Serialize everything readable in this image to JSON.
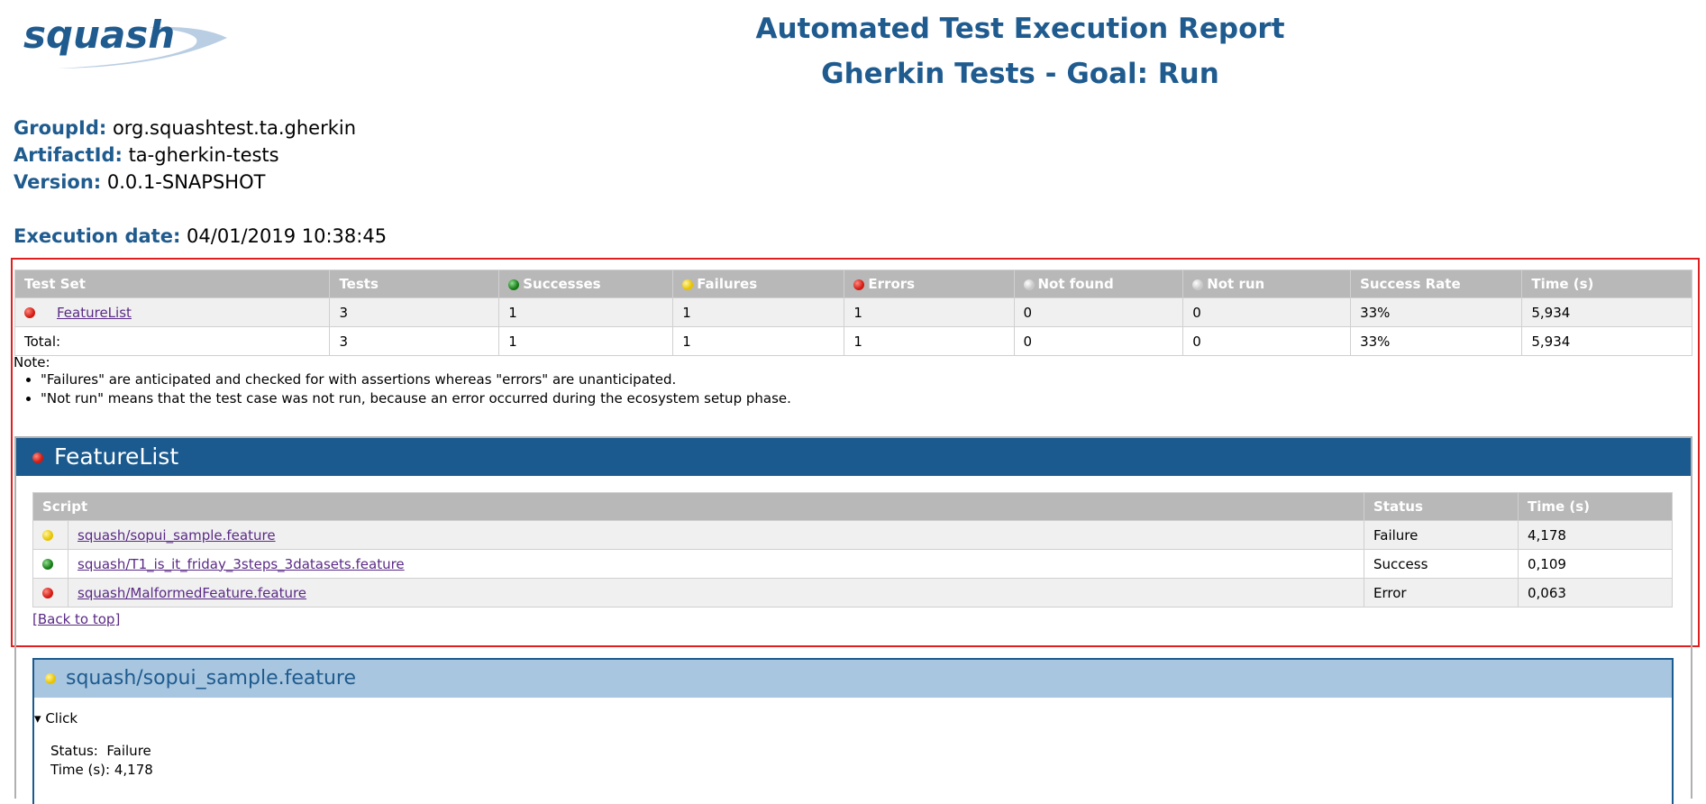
{
  "header": {
    "logo": "squash",
    "title": "Automated Test Execution Report",
    "subtitle": "Gherkin Tests - Goal: Run"
  },
  "info": [
    {
      "label": "GroupId:",
      "value": "org.squashtest.ta.gherkin"
    },
    {
      "label": "ArtifactId:",
      "value": "ta-gherkin-tests"
    },
    {
      "label": "Version:",
      "value": "0.0.1-SNAPSHOT"
    }
  ],
  "execution_date": {
    "label": "Execution date:",
    "value": "04/01/2019 10:38:45"
  },
  "summary_table": {
    "headers": [
      "Test Set",
      "Tests",
      "Successes",
      "Failures",
      "Errors",
      "Not found",
      "Not run",
      "Success Rate",
      "Time (s)"
    ],
    "rows": [
      [
        "FeatureList",
        "3",
        "1",
        "1",
        "1",
        "0",
        "0",
        "33%",
        "5,934"
      ]
    ],
    "total": [
      "Total:",
      "3",
      "1",
      "1",
      "1",
      "0",
      "0",
      "33%",
      "5,934"
    ]
  },
  "notes": {
    "title": "Note:",
    "items": [
      "\"Failures\" are anticipated and checked for with assertions whereas \"errors\" are unanticipated.",
      "\"Not run\" means that the test case was not run, because an error occurred during the ecosystem setup phase."
    ]
  },
  "feature": {
    "title": "FeatureList",
    "headers": [
      "Script",
      "Status",
      "Time (s)"
    ],
    "rows": [
      [
        "squash/sopui_sample.feature",
        "Failure",
        "4,178"
      ],
      [
        "squash/T1_is_it_friday_3steps_3datasets.feature",
        "Success",
        "0,109"
      ],
      [
        "squash/MalformedFeature.feature",
        "Error",
        "0,063"
      ]
    ],
    "back": "[Back to top]"
  },
  "script_section": {
    "title": "squash/sopui_sample.feature",
    "step": "Click",
    "status_label": "Status:",
    "status": "Failure",
    "time_label": "Time (s):",
    "time": "4,178"
  }
}
